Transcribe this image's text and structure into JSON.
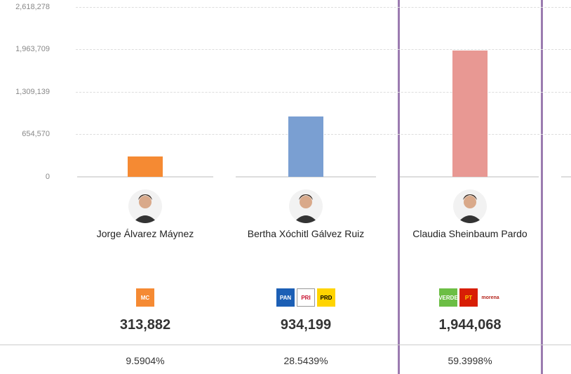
{
  "chart_data": {
    "type": "bar",
    "categories": [
      "Jorge Álvarez Máynez",
      "Bertha Xóchitl Gálvez Ruiz",
      "Claudia Sheinbaum Pardo"
    ],
    "values": [
      313882,
      934199,
      1944068
    ],
    "value_labels": [
      "313,882",
      "934,199",
      "1,944,068"
    ],
    "percentages": [
      "9.5904%",
      "28.5439%",
      "59.3998%"
    ],
    "colors": [
      "#f58a33",
      "#7a9fd2",
      "#e89893"
    ],
    "ylim": [
      0,
      2618278
    ],
    "yticks": [
      0,
      654570,
      1309139,
      1963709,
      2618278
    ],
    "ytick_labels": [
      "0",
      "654,570",
      "1,309,139",
      "1,963,709",
      "2,618,278"
    ],
    "grid": true,
    "highlighted": "Claudia Sheinbaum Pardo",
    "highlight_color": "#9b7bb0",
    "parties": [
      [
        "MC"
      ],
      [
        "PAN",
        "PRI",
        "PRD"
      ],
      [
        "VERDE",
        "PT",
        "morena"
      ]
    ]
  }
}
